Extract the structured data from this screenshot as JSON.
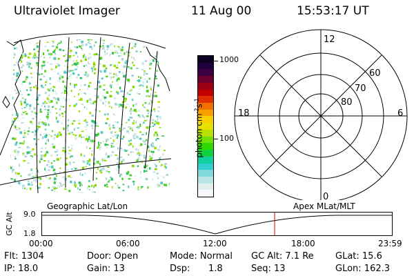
{
  "header": {
    "instrument": "Ultraviolet Imager",
    "date": "11 Aug 00",
    "time": "15:53:17 UT"
  },
  "colorbar": {
    "unit_label": "photon cm",
    "unit_exp1": "-2",
    "unit_s": "s",
    "unit_exp2": "-1",
    "ticks": [
      "1000",
      "100"
    ],
    "colors": [
      "#0d0021",
      "#20003c",
      "#3a0040",
      "#6a0030",
      "#9a0015",
      "#c00000",
      "#e03000",
      "#f07000",
      "#f8a000",
      "#f8d000",
      "#e8e000",
      "#b8e000",
      "#70e000",
      "#30d800",
      "#10d040",
      "#10d0a0",
      "#30d0d0",
      "#80d8d8",
      "#b8e4e4",
      "#e0eeee",
      "#f4f8f8"
    ]
  },
  "polar": {
    "mlt_labels": {
      "top": "12",
      "right": "6",
      "bottom": "0",
      "left": "18"
    },
    "lat_labels": [
      "60",
      "70",
      "80"
    ]
  },
  "track": {
    "left_label": "Geographic Lat/Lon",
    "right_label": "Apex MLat/MLT",
    "axis_label": "GC Alt",
    "y_labels": [
      "9.0",
      "1.8"
    ],
    "time_labels": [
      "00:00",
      "06:00",
      "12:00",
      "18:00",
      "23:59"
    ],
    "marker_color": "#d00000"
  },
  "info": {
    "flt": "Flt: 1304",
    "ip": "IP: 18.0",
    "door": "Door: Open",
    "gain": "Gain: 13",
    "mode": "Mode: Normal",
    "dsp_label": "Dsp:",
    "dsp_value": "1.8",
    "gcalt": "GC Alt: 7.1 Re",
    "seq": "Seq: 13",
    "glat": "GLat:  15.6",
    "glon": "GLon: 162.3"
  }
}
